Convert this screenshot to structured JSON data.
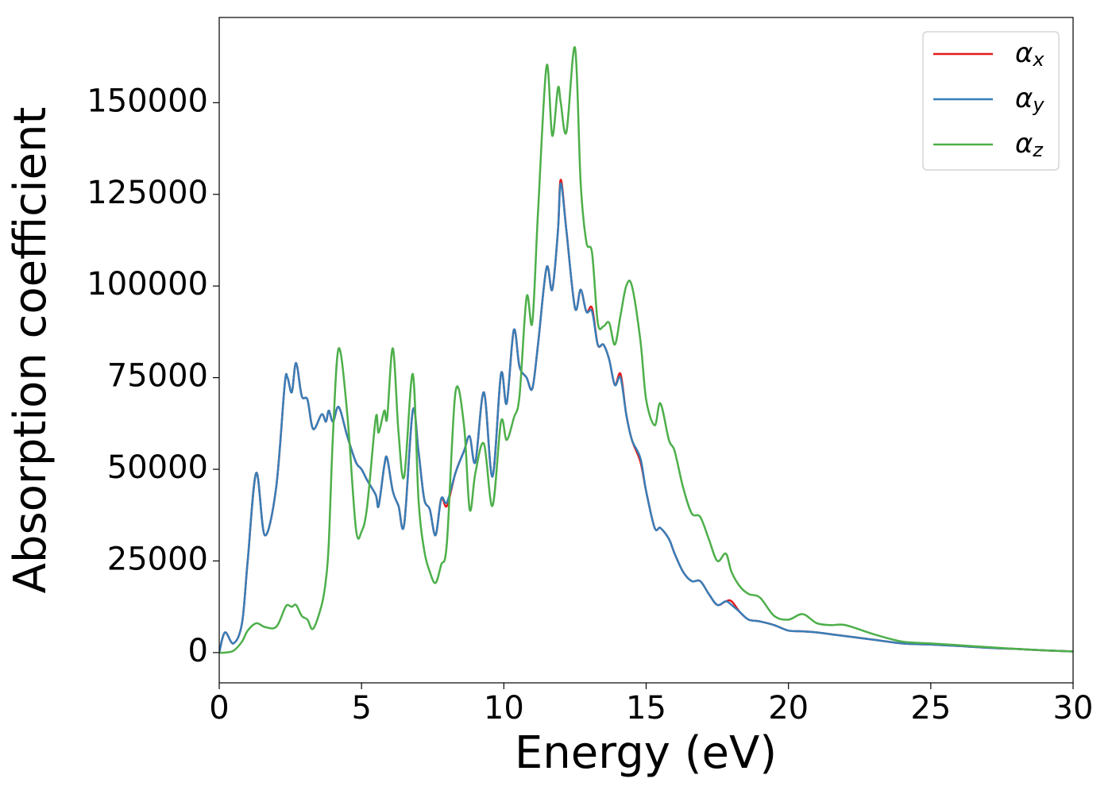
{
  "chart_data": {
    "type": "line",
    "xlabel": "Energy (eV)",
    "ylabel": "Absorption coefficient",
    "x": [
      0,
      0.2,
      0.5,
      0.8,
      1.0,
      1.3,
      1.6,
      2.0,
      2.3,
      2.4,
      2.55,
      2.7,
      2.9,
      3.1,
      3.3,
      3.6,
      3.75,
      3.85,
      4.0,
      4.2,
      4.5,
      4.8,
      5.0,
      5.2,
      5.5,
      5.6,
      5.8,
      5.9,
      6.1,
      6.3,
      6.5,
      6.8,
      7.0,
      7.2,
      7.4,
      7.6,
      7.8,
      8.0,
      8.3,
      8.6,
      8.8,
      9.0,
      9.3,
      9.6,
      9.9,
      10.1,
      10.35,
      10.55,
      10.8,
      11.0,
      11.2,
      11.5,
      11.7,
      11.9,
      12.0,
      12.2,
      12.5,
      12.7,
      12.9,
      13.1,
      13.3,
      13.5,
      13.7,
      13.9,
      14.1,
      14.3,
      14.5,
      14.8,
      15.0,
      15.3,
      15.5,
      15.8,
      16.0,
      16.3,
      16.6,
      16.9,
      17.2,
      17.5,
      17.8,
      18.0,
      18.3,
      18.6,
      19.0,
      19.5,
      20.0,
      20.5,
      21.0,
      21.5,
      22.0,
      23.0,
      24.0,
      25.0,
      26.0,
      27.0,
      28.0,
      29.0,
      30.0
    ],
    "series": [
      {
        "name": "αx",
        "color": "#e41a1c",
        "values": [
          0,
          5500,
          2500,
          8000,
          25000,
          49000,
          32000,
          45000,
          73000,
          75000,
          71000,
          79000,
          70000,
          69000,
          61000,
          65000,
          63000,
          66000,
          63000,
          67000,
          59000,
          52000,
          50000,
          47000,
          43000,
          40000,
          51000,
          53000,
          44000,
          40000,
          35000,
          66000,
          55000,
          42000,
          39000,
          32000,
          42000,
          40000,
          49000,
          55000,
          59000,
          52000,
          71000,
          48000,
          76000,
          68000,
          88000,
          78000,
          75000,
          72000,
          84000,
          105000,
          99000,
          115000,
          129000,
          115000,
          94000,
          99000,
          93000,
          94000,
          84000,
          84000,
          80000,
          73000,
          76000,
          65000,
          58000,
          52000,
          44000,
          34000,
          34000,
          31000,
          27000,
          22000,
          19500,
          19500,
          16000,
          13000,
          14000,
          14000,
          11000,
          9000,
          8500,
          7500,
          6000,
          5800,
          5500,
          5000,
          4500,
          3500,
          2500,
          2200,
          1800,
          1300,
          1000,
          600,
          300
        ]
      },
      {
        "name": "αy",
        "color": "#377eb8",
        "values": [
          0,
          5500,
          2500,
          8000,
          25000,
          49000,
          32000,
          45000,
          73000,
          75000,
          71000,
          79000,
          70000,
          69000,
          61000,
          65000,
          63000,
          66000,
          63000,
          67000,
          59000,
          52000,
          50000,
          47000,
          43000,
          40000,
          51000,
          53000,
          44000,
          40000,
          35000,
          66000,
          55000,
          42000,
          39000,
          32000,
          42000,
          41000,
          49000,
          55000,
          59000,
          52000,
          71000,
          48000,
          76000,
          68000,
          88000,
          78000,
          75000,
          72000,
          84000,
          105000,
          99000,
          115000,
          128000,
          115000,
          94000,
          99000,
          93000,
          93000,
          84000,
          84000,
          80000,
          73000,
          75000,
          65000,
          58000,
          53000,
          44000,
          34000,
          34000,
          31000,
          27000,
          22000,
          19500,
          19500,
          16000,
          13000,
          14000,
          13000,
          11000,
          9000,
          8500,
          7500,
          6000,
          5800,
          5500,
          5000,
          4500,
          3500,
          2500,
          2200,
          1800,
          1300,
          1000,
          600,
          300
        ]
      },
      {
        "name": "αz",
        "color": "#4daf4a",
        "values": [
          0,
          0,
          500,
          3000,
          6000,
          8000,
          7000,
          7000,
          12000,
          13000,
          12500,
          13000,
          10000,
          9000,
          6500,
          13000,
          20000,
          30000,
          60000,
          83000,
          65000,
          34000,
          33000,
          40000,
          64000,
          60000,
          66000,
          64000,
          83000,
          60000,
          48000,
          76000,
          42000,
          28000,
          22000,
          19000,
          24000,
          30000,
          71000,
          62000,
          39000,
          49000,
          57000,
          40000,
          63000,
          58000,
          64000,
          70000,
          97000,
          90000,
          120000,
          160000,
          141000,
          154000,
          150000,
          142000,
          165000,
          128000,
          112000,
          109000,
          90000,
          89000,
          90000,
          84000,
          92000,
          100000,
          100000,
          85000,
          69000,
          62000,
          68000,
          58000,
          55000,
          45000,
          38000,
          37000,
          31000,
          25000,
          27000,
          22000,
          18000,
          16000,
          15000,
          10000,
          9000,
          10500,
          8000,
          7500,
          7500,
          5000,
          3000,
          2500,
          2000,
          1500,
          1000,
          600,
          300
        ]
      }
    ],
    "xlim": [
      0,
      30
    ],
    "xticks": [
      0,
      5,
      10,
      15,
      20,
      25,
      30
    ],
    "ylim": [
      -8250,
      173250
    ],
    "yticks": [
      0,
      25000,
      50000,
      75000,
      100000,
      125000,
      150000
    ],
    "legend": "upper right"
  }
}
